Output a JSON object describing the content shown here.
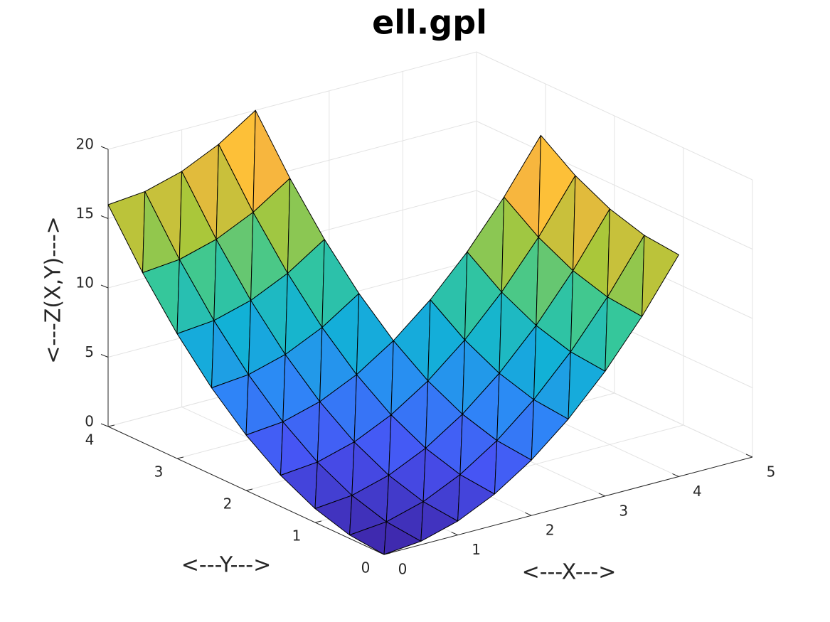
{
  "chart_data": {
    "type": "surface",
    "title": "ell.gpl",
    "xlabel": "<---X--->",
    "ylabel": "<---Y--->",
    "zlabel": "<---Z(X,Y)--->",
    "x": [
      0,
      0.5,
      1,
      1.5,
      2,
      2.5,
      3,
      3.5,
      4
    ],
    "y": [
      0,
      0.5,
      1,
      1.5,
      2,
      2.5,
      3,
      3.5,
      4
    ],
    "z": [
      [
        0,
        0.25,
        1,
        2.25,
        4,
        6.25,
        9,
        12.25,
        16
      ],
      [
        0.25,
        0.5,
        1.25,
        2.5,
        4.25,
        6.5,
        9.25,
        12.5,
        16.25
      ],
      [
        1,
        1.25,
        2,
        3.25,
        5,
        7.25,
        10,
        13.25,
        17
      ],
      [
        2.25,
        2.5,
        3.25,
        4.5,
        6.25,
        8.5,
        11.25,
        14.5,
        18.25
      ],
      [
        4,
        4.25,
        5,
        6.25,
        8,
        10.25,
        13,
        16.25,
        20
      ],
      [
        6.25,
        6.5,
        7.25,
        8.5,
        10.25,
        null,
        null,
        null,
        null
      ],
      [
        9,
        9.25,
        10,
        11.25,
        13,
        null,
        null,
        null,
        null
      ],
      [
        12.25,
        12.5,
        13.25,
        14.5,
        16.25,
        null,
        null,
        null,
        null
      ],
      [
        16,
        16.25,
        17,
        18.25,
        20,
        null,
        null,
        null,
        null
      ]
    ],
    "colormap": "parula",
    "xlim": [
      0,
      5
    ],
    "ylim": [
      0,
      4
    ],
    "zlim": [
      0,
      20
    ],
    "xticks": [
      0,
      1,
      2,
      3,
      4,
      5
    ],
    "yticks": [
      0,
      1,
      2,
      3,
      4
    ],
    "zticks": [
      0,
      5,
      10,
      15,
      20
    ],
    "grid": true
  }
}
